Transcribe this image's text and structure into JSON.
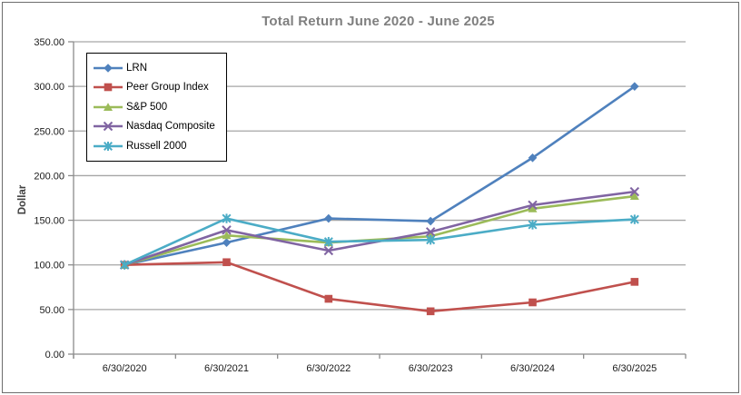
{
  "frame": {
    "background": "#FFFFFF",
    "border_color": "#6E6E6E"
  },
  "chart_data": {
    "type": "line",
    "title": "Total Return June 2020 - June 2025",
    "ylabel": "Dollar",
    "xlabel": "",
    "ylim": [
      0,
      350
    ],
    "ytick_step": 50,
    "y_tick_labels": [
      "350.00",
      "300.00",
      "250.00",
      "200.00",
      "150.00",
      "100.00",
      "50.00",
      "0.00"
    ],
    "categories": [
      "6/30/2020",
      "6/30/2021",
      "6/30/2022",
      "6/30/2023",
      "6/30/2024",
      "6/30/2025"
    ],
    "series": [
      {
        "name": "LRN",
        "marker": "diamond",
        "color": "#4F81BD",
        "values": [
          100,
          125,
          152,
          149,
          220,
          300
        ]
      },
      {
        "name": "Peer Group Index",
        "marker": "square",
        "color": "#C0504D",
        "values": [
          100,
          103,
          62,
          48,
          58,
          81
        ]
      },
      {
        "name": "S&P 500",
        "marker": "triangle",
        "color": "#9BBB59",
        "values": [
          100,
          133,
          125,
          132,
          163,
          177
        ]
      },
      {
        "name": "Nasdaq Composite",
        "marker": "x",
        "color": "#8064A2",
        "values": [
          100,
          139,
          116,
          137,
          167,
          182
        ]
      },
      {
        "name": "Russell 2000",
        "marker": "asterisk",
        "color": "#4BACC6",
        "values": [
          100,
          152,
          126,
          128,
          145,
          151
        ]
      }
    ],
    "grid": true,
    "legend_position": "top-left-inside",
    "colors": {
      "title": "#7F7F7F",
      "gridline": "#A6A6A6",
      "axis": "#8C8C8C",
      "tick_label": "#1A1A1A",
      "ylabel": "#404040",
      "legend_border": "#000000",
      "legend_bg": "#FFFFFF"
    }
  }
}
